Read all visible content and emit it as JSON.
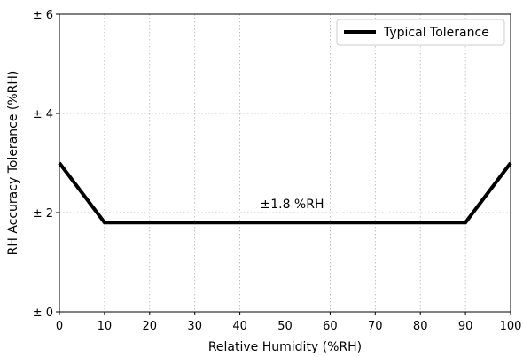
{
  "chart_data": {
    "type": "line",
    "xlabel": "Relative Humidity (%RH)",
    "ylabel": "RH Accuracy Tolerance (%RH)",
    "xlim": [
      0,
      100
    ],
    "ylim": [
      0,
      6
    ],
    "x_ticks": [
      0,
      10,
      20,
      30,
      40,
      50,
      60,
      70,
      80,
      90,
      100
    ],
    "x_tick_labels": [
      "0",
      "10",
      "20",
      "30",
      "40",
      "50",
      "60",
      "70",
      "80",
      "90",
      "100"
    ],
    "y_ticks": [
      0,
      2,
      4,
      6
    ],
    "y_tick_labels": [
      "± 0",
      "± 2",
      "± 4",
      "± 6"
    ],
    "grid": true,
    "legend_position": "top-right",
    "series": [
      {
        "name": "Typical Tolerance",
        "color": "#000000",
        "x": [
          0,
          10,
          90,
          100
        ],
        "y": [
          3.0,
          1.8,
          1.8,
          3.0
        ]
      }
    ],
    "annotations": [
      {
        "text": "±1.8 %RH",
        "x": 50,
        "y": 2.0
      }
    ]
  }
}
